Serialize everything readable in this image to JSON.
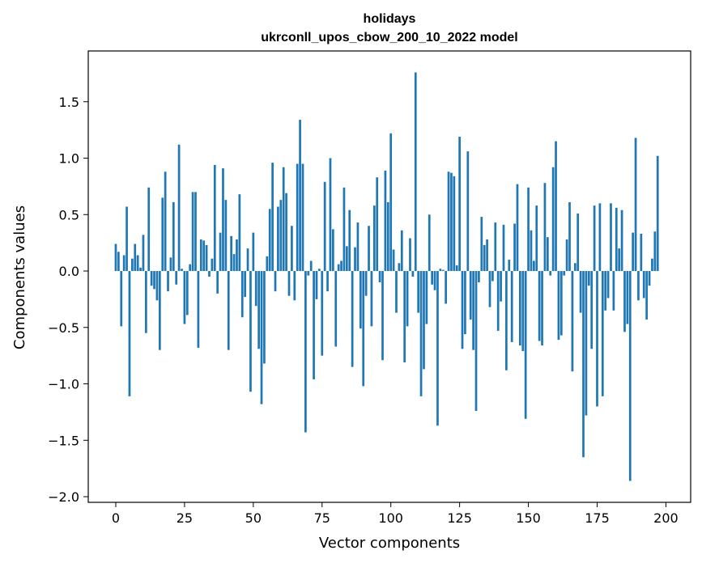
{
  "chart_data": {
    "type": "bar",
    "title": "holidays",
    "subtitle": "ukrconll_upos_cbow_200_10_2022 model",
    "xlabel": "Vector components",
    "ylabel": "Components values",
    "xlim": [
      -10,
      209
    ],
    "ylim": [
      -2.05,
      1.95
    ],
    "xticks": [
      0,
      25,
      50,
      75,
      100,
      125,
      150,
      175,
      200
    ],
    "yticks": [
      -2.0,
      -1.5,
      -1.0,
      -0.5,
      0.0,
      0.5,
      1.0,
      1.5
    ],
    "ytick_labels": [
      "−2.0",
      "−1.5",
      "−1.0",
      "−0.5",
      "0.0",
      "0.5",
      "1.0",
      "1.5"
    ],
    "bar_color": "#1f77b4",
    "values": [
      0.24,
      0.17,
      -0.49,
      0.14,
      0.57,
      -1.11,
      0.11,
      0.24,
      0.14,
      0.03,
      0.32,
      -0.55,
      0.74,
      -0.13,
      -0.16,
      -0.26,
      -0.7,
      0.65,
      0.88,
      -0.18,
      0.12,
      0.61,
      -0.12,
      1.12,
      0.02,
      -0.47,
      -0.39,
      0.06,
      0.7,
      0.7,
      -0.68,
      0.28,
      0.27,
      0.23,
      -0.05,
      0.11,
      0.94,
      -0.2,
      0.34,
      0.91,
      0.63,
      -0.7,
      0.31,
      0.15,
      0.28,
      0.68,
      -0.41,
      -0.23,
      0.2,
      -1.07,
      0.34,
      -0.31,
      -0.69,
      -1.18,
      -0.82,
      0.13,
      0.55,
      0.96,
      -0.18,
      0.57,
      0.63,
      0.92,
      0.69,
      -0.22,
      0.4,
      -0.26,
      0.95,
      1.34,
      0.95,
      -1.43,
      -0.04,
      0.09,
      -0.96,
      -0.25,
      0.02,
      -0.75,
      0.79,
      -0.18,
      1.0,
      0.37,
      -0.67,
      0.06,
      0.09,
      0.74,
      0.22,
      0.54,
      -0.85,
      0.21,
      0.43,
      -0.51,
      -1.02,
      -0.22,
      0.4,
      -0.49,
      0.58,
      0.83,
      -0.1,
      -0.79,
      0.89,
      0.61,
      1.22,
      0.19,
      -0.37,
      0.07,
      0.36,
      -0.81,
      -0.49,
      0.29,
      -0.05,
      1.76,
      -0.37,
      -1.11,
      -0.87,
      -0.47,
      0.5,
      -0.12,
      -0.17,
      -1.37,
      0.02,
      0.01,
      -0.29,
      0.88,
      0.87,
      0.84,
      0.05,
      1.19,
      -0.69,
      -0.56,
      1.06,
      -0.43,
      -0.7,
      -1.24,
      -0.1,
      0.48,
      0.23,
      0.28,
      -0.32,
      -0.09,
      0.43,
      -0.53,
      -0.27,
      0.41,
      -0.88,
      0.1,
      -0.63,
      0.42,
      0.77,
      -0.66,
      -0.71,
      -1.31,
      0.74,
      0.36,
      0.09,
      0.58,
      -0.62,
      -0.66,
      0.78,
      0.3,
      -0.04,
      0.92,
      1.15,
      -0.61,
      -0.57,
      -0.04,
      0.28,
      0.61,
      -0.89,
      0.07,
      0.51,
      -0.37,
      -1.65,
      -1.28,
      -0.13,
      -0.69,
      0.58,
      -1.2,
      0.6,
      -1.11,
      -0.35,
      -0.24,
      0.6,
      -0.35,
      0.56,
      0.2,
      0.54,
      -0.54,
      -0.47,
      -1.86,
      0.34,
      1.18,
      -0.26,
      0.33,
      -0.24,
      -0.43,
      -0.13,
      0.11,
      0.35,
      1.02
    ]
  }
}
